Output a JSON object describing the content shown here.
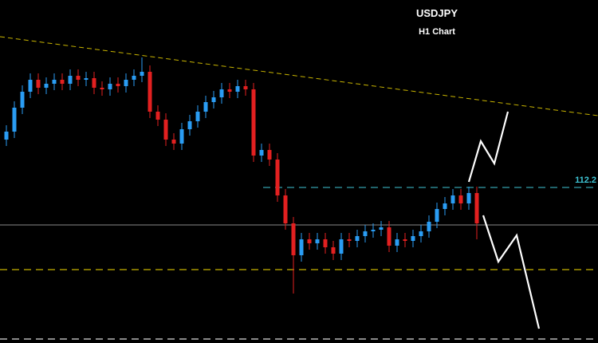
{
  "chart_data": {
    "type": "candlestick",
    "title": "USDJPY",
    "subtitle": "H1 Chart",
    "up_color": "#2a9df4",
    "down_color": "#e32020",
    "ylim": [
      110.25,
      114.55
    ],
    "level": 112.2,
    "level_color": "#3fc6d6",
    "open": [
      112.8,
      112.9,
      113.2,
      113.4,
      113.55,
      113.45,
      113.5,
      113.55,
      113.5,
      113.6,
      113.55,
      113.57,
      113.45,
      113.43,
      113.5,
      113.47,
      113.55,
      113.6,
      113.65,
      113.15,
      113.05,
      112.8,
      112.75,
      112.93,
      113.03,
      113.15,
      113.27,
      113.33,
      113.43,
      113.4,
      113.47,
      113.43,
      112.6,
      112.67,
      112.55,
      112.1,
      111.75,
      111.35,
      111.55,
      111.5,
      111.55,
      111.45,
      111.37,
      111.55,
      111.53,
      111.59,
      111.65,
      111.67,
      111.7,
      111.47,
      111.55,
      111.53,
      111.59,
      111.65,
      111.77,
      111.93,
      112.0,
      112.1,
      112.0,
      112.13
    ],
    "high": [
      112.98,
      113.28,
      113.48,
      113.63,
      113.63,
      113.58,
      113.63,
      113.63,
      113.68,
      113.68,
      113.65,
      113.65,
      113.53,
      113.58,
      113.58,
      113.63,
      113.68,
      113.83,
      113.73,
      113.23,
      113.13,
      112.88,
      113.01,
      113.11,
      113.23,
      113.35,
      113.41,
      113.51,
      113.51,
      113.55,
      113.55,
      113.51,
      112.75,
      112.75,
      112.63,
      112.18,
      111.83,
      111.63,
      111.63,
      111.63,
      111.63,
      111.53,
      111.63,
      111.63,
      111.67,
      111.73,
      111.75,
      111.78,
      111.78,
      111.63,
      111.63,
      111.67,
      111.73,
      111.85,
      112.01,
      112.08,
      112.18,
      112.18,
      112.21,
      112.21
    ],
    "low": [
      112.72,
      112.82,
      113.12,
      113.32,
      113.37,
      113.37,
      113.42,
      113.42,
      113.42,
      113.47,
      113.47,
      113.37,
      113.35,
      113.35,
      113.39,
      113.39,
      113.47,
      113.52,
      113.07,
      112.97,
      112.72,
      112.67,
      112.67,
      112.85,
      112.95,
      113.07,
      113.19,
      113.25,
      113.32,
      113.32,
      113.35,
      112.52,
      112.52,
      112.47,
      112.02,
      111.67,
      110.87,
      111.27,
      111.42,
      111.42,
      111.37,
      111.29,
      111.29,
      111.45,
      111.45,
      111.51,
      111.57,
      111.59,
      111.39,
      111.39,
      111.45,
      111.45,
      111.51,
      111.57,
      111.69,
      111.85,
      111.92,
      111.92,
      111.92,
      111.55
    ],
    "close": [
      112.9,
      113.2,
      113.4,
      113.55,
      113.45,
      113.5,
      113.55,
      113.5,
      113.6,
      113.55,
      113.57,
      113.45,
      113.43,
      113.5,
      113.47,
      113.55,
      113.6,
      113.65,
      113.15,
      113.05,
      112.8,
      112.75,
      112.93,
      113.03,
      113.15,
      113.27,
      113.33,
      113.43,
      113.4,
      113.47,
      113.43,
      112.6,
      112.67,
      112.55,
      112.1,
      111.75,
      111.35,
      111.55,
      111.5,
      111.55,
      111.45,
      111.37,
      111.55,
      111.53,
      111.59,
      111.65,
      111.67,
      111.7,
      111.47,
      111.55,
      111.53,
      111.59,
      111.65,
      111.77,
      111.93,
      112.0,
      112.1,
      112.0,
      112.13,
      111.75
    ]
  }
}
